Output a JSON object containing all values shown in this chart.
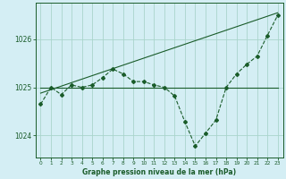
{
  "bg_color": "#d4eef4",
  "grid_color": "#aad4cc",
  "line_color": "#1a5c2a",
  "title": "Graphe pression niveau de la mer (hPa)",
  "xlim": [
    -0.5,
    23.5
  ],
  "ylim": [
    1023.55,
    1026.75
  ],
  "yticks": [
    1024,
    1025,
    1026
  ],
  "xticks": [
    0,
    1,
    2,
    3,
    4,
    5,
    6,
    7,
    8,
    9,
    10,
    11,
    12,
    13,
    14,
    15,
    16,
    17,
    18,
    19,
    20,
    21,
    22,
    23
  ],
  "series1": {
    "x": [
      0,
      1,
      2,
      3,
      4,
      5,
      6,
      7,
      8,
      9,
      10,
      11,
      12,
      13,
      14,
      15,
      16,
      17,
      18,
      19,
      20,
      21,
      22,
      23
    ],
    "y": [
      1024.65,
      1025.0,
      1024.85,
      1025.05,
      1025.0,
      1025.05,
      1025.2,
      1025.38,
      1025.28,
      1025.12,
      1025.12,
      1025.05,
      1025.0,
      1024.82,
      1024.28,
      1023.78,
      1024.05,
      1024.32,
      1025.0,
      1025.28,
      1025.48,
      1025.65,
      1026.08,
      1026.5
    ],
    "marker": "D",
    "markersize": 2.0,
    "linewidth": 0.8,
    "linestyle": "--"
  },
  "series2": {
    "x": [
      0,
      23
    ],
    "y": [
      1025.0,
      1025.0
    ],
    "linewidth": 0.8,
    "linestyle": "-"
  },
  "series3": {
    "x": [
      0,
      23
    ],
    "y": [
      1024.88,
      1026.55
    ],
    "linewidth": 0.8,
    "linestyle": "-"
  }
}
